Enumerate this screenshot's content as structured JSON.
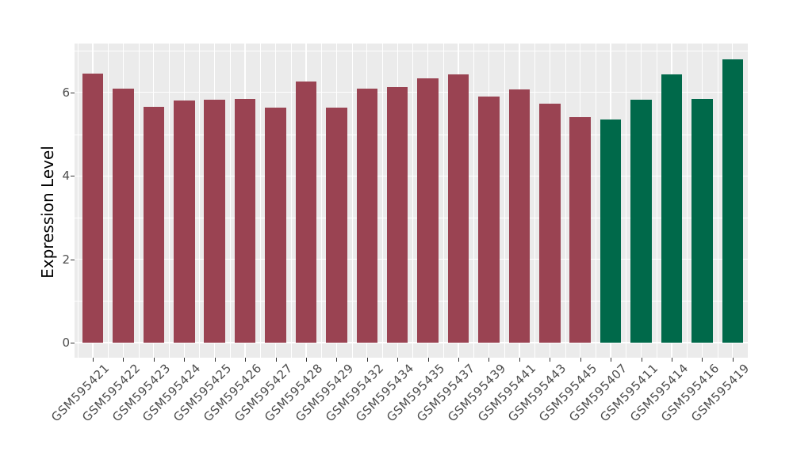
{
  "chart_data": {
    "type": "bar",
    "ylabel": "Expression Level",
    "xlabel": "",
    "categories": [
      "GSM595421",
      "GSM595422",
      "GSM595423",
      "GSM595424",
      "GSM595425",
      "GSM595426",
      "GSM595427",
      "GSM595428",
      "GSM595429",
      "GSM595432",
      "GSM595434",
      "GSM595435",
      "GSM595437",
      "GSM595439",
      "GSM595441",
      "GSM595443",
      "GSM595445",
      "GSM595407",
      "GSM595411",
      "GSM595414",
      "GSM595416",
      "GSM595419"
    ],
    "values": [
      6.46,
      6.09,
      5.66,
      5.8,
      5.82,
      5.85,
      5.63,
      6.27,
      5.63,
      6.1,
      6.12,
      6.34,
      6.44,
      5.91,
      6.08,
      5.74,
      5.41,
      5.36,
      5.82,
      6.44,
      5.84,
      6.79
    ],
    "bar_groups": [
      "group1",
      "group1",
      "group1",
      "group1",
      "group1",
      "group1",
      "group1",
      "group1",
      "group1",
      "group1",
      "group1",
      "group1",
      "group1",
      "group1",
      "group1",
      "group1",
      "group1",
      "group2",
      "group2",
      "group2",
      "group2",
      "group2"
    ],
    "group_colors": {
      "group1": "#9A4352",
      "group2": "#00694A"
    },
    "yticks": [
      0,
      2,
      4,
      6
    ],
    "yticks_minor": [
      1,
      3,
      5,
      7
    ],
    "ylim": [
      -0.36,
      7.17
    ],
    "grid": "on",
    "legend": "none",
    "panel_bg": "#EBEBEB",
    "grid_color": "#FFFFFF",
    "axis_text_color": "#4D4D4D",
    "axis_title_color": "#000000",
    "tick_color": "#333333",
    "background": "#FFFFFF"
  }
}
